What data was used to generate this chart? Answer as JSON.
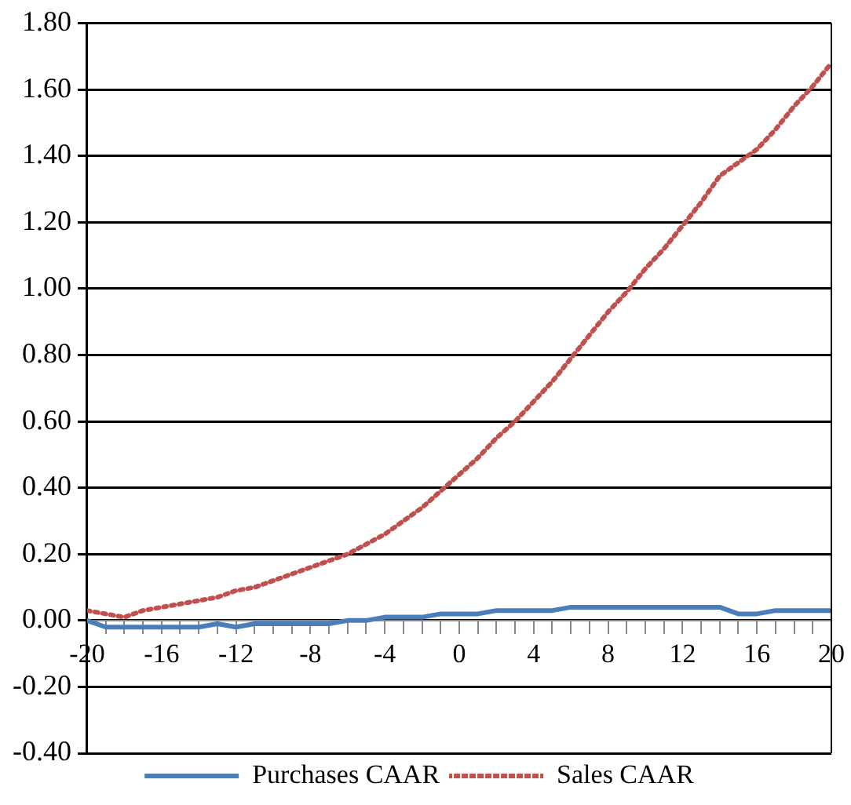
{
  "chart_data": {
    "type": "line",
    "x": [
      -20,
      -19,
      -18,
      -17,
      -16,
      -15,
      -14,
      -13,
      -12,
      -11,
      -10,
      -9,
      -8,
      -7,
      -6,
      -5,
      -4,
      -3,
      -2,
      -1,
      0,
      1,
      2,
      3,
      4,
      5,
      6,
      7,
      8,
      9,
      10,
      11,
      12,
      13,
      14,
      15,
      16,
      17,
      18,
      19,
      20
    ],
    "series": [
      {
        "name": "Purchases CAAR",
        "color": "#4a7ebb",
        "line_style": "solid",
        "values": [
          0.0,
          -0.02,
          -0.02,
          -0.02,
          -0.02,
          -0.02,
          -0.02,
          -0.01,
          -0.02,
          -0.01,
          -0.01,
          -0.01,
          -0.01,
          -0.01,
          0.0,
          0.0,
          0.01,
          0.01,
          0.01,
          0.02,
          0.02,
          0.02,
          0.03,
          0.03,
          0.03,
          0.03,
          0.04,
          0.04,
          0.04,
          0.04,
          0.04,
          0.04,
          0.04,
          0.04,
          0.04,
          0.02,
          0.02,
          0.03,
          0.03,
          0.03,
          0.03
        ]
      },
      {
        "name": "Sales CAAR",
        "color": "#c0504d",
        "line_style": "dotted",
        "values": [
          0.03,
          0.02,
          0.01,
          0.03,
          0.04,
          0.05,
          0.06,
          0.07,
          0.09,
          0.1,
          0.12,
          0.14,
          0.16,
          0.18,
          0.2,
          0.23,
          0.26,
          0.3,
          0.34,
          0.39,
          0.44,
          0.49,
          0.55,
          0.6,
          0.66,
          0.72,
          0.79,
          0.86,
          0.93,
          0.99,
          1.06,
          1.12,
          1.19,
          1.26,
          1.34,
          1.38,
          1.42,
          1.48,
          1.55,
          1.61,
          1.68
        ]
      }
    ],
    "xlim": [
      -20,
      20
    ],
    "xticks": [
      -20,
      {
        "value": -19,
        "label": null
      },
      {
        "value": -18,
        "label": null
      },
      {
        "value": -17,
        "label": null
      },
      -16,
      {
        "value": -15,
        "label": null
      },
      {
        "value": -14,
        "label": null
      },
      {
        "value": -13,
        "label": null
      },
      -12,
      {
        "value": -11,
        "label": null
      },
      {
        "value": -10,
        "label": null
      },
      {
        "value": -9,
        "label": null
      },
      -8,
      {
        "value": -7,
        "label": null
      },
      {
        "value": -6,
        "label": null
      },
      {
        "value": -5,
        "label": null
      },
      -4,
      {
        "value": -3,
        "label": null
      },
      {
        "value": -2,
        "label": null
      },
      {
        "value": -1,
        "label": null
      },
      0,
      {
        "value": 1,
        "label": null
      },
      {
        "value": 2,
        "label": null
      },
      {
        "value": 3,
        "label": null
      },
      4,
      {
        "value": 5,
        "label": null
      },
      {
        "value": 6,
        "label": null
      },
      {
        "value": 7,
        "label": null
      },
      8,
      {
        "value": 9,
        "label": null
      },
      {
        "value": 10,
        "label": null
      },
      {
        "value": 11,
        "label": null
      },
      12,
      {
        "value": 13,
        "label": null
      },
      {
        "value": 14,
        "label": null
      },
      {
        "value": 15,
        "label": null
      },
      16,
      {
        "value": 17,
        "label": null
      },
      {
        "value": 18,
        "label": null
      },
      {
        "value": 19,
        "label": null
      },
      20
    ],
    "ylim": [
      -0.4,
      1.8
    ],
    "yticks": [
      {
        "value": -0.4,
        "label": "-0.40"
      },
      {
        "value": -0.2,
        "label": "-0.20"
      },
      {
        "value": 0,
        "label": "0.00"
      },
      {
        "value": 0.2,
        "label": "0.20"
      },
      {
        "value": 0.4,
        "label": "0.40"
      },
      {
        "value": 0.6,
        "label": "0.60"
      },
      {
        "value": 0.8,
        "label": "0.80"
      },
      {
        "value": 1.0,
        "label": "1.00"
      },
      {
        "value": 1.2,
        "label": "1.20"
      },
      {
        "value": 1.4,
        "label": "1.40"
      },
      {
        "value": 1.6,
        "label": "1.60"
      },
      {
        "value": 1.8,
        "label": "1.80"
      }
    ],
    "grid": "y",
    "legend": "bottom",
    "marker": "none"
  }
}
